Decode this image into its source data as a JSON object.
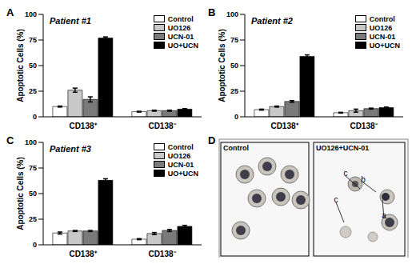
{
  "chart_data": [
    {
      "panel": "A",
      "type": "bar",
      "title": "Patient #1",
      "y_label": "Apoptotic Cells (%)",
      "categories": [
        "CD138⁺",
        "CD138⁻"
      ],
      "series": [
        {
          "name": "Control",
          "color": "#ffffff",
          "values": [
            10,
            5
          ],
          "errors": [
            0.5,
            0.4
          ]
        },
        {
          "name": "UO126",
          "color": "#c8c8c8",
          "values": [
            26,
            6
          ],
          "errors": [
            2,
            0.5
          ]
        },
        {
          "name": "UCN-01",
          "color": "#7a7a7a",
          "values": [
            17,
            6
          ],
          "errors": [
            2.5,
            0.5
          ]
        },
        {
          "name": "UO+UCN",
          "color": "#000000",
          "values": [
            77,
            7.5
          ],
          "errors": [
            1,
            0.5
          ]
        }
      ],
      "ylim": [
        0,
        100
      ],
      "yticks": [
        0,
        25,
        50,
        75,
        100
      ]
    },
    {
      "panel": "B",
      "type": "bar",
      "title": "Patient #2",
      "y_label": "Apoptotic Cells (%)",
      "categories": [
        "CD138⁺",
        "CD138⁻"
      ],
      "series": [
        {
          "name": "Control",
          "color": "#ffffff",
          "values": [
            7,
            4
          ],
          "errors": [
            0.5,
            0.4
          ]
        },
        {
          "name": "UO126",
          "color": "#c8c8c8",
          "values": [
            10,
            6
          ],
          "errors": [
            0.5,
            1.5
          ]
        },
        {
          "name": "UCN-01",
          "color": "#7a7a7a",
          "values": [
            15,
            8
          ],
          "errors": [
            0.8,
            0.5
          ]
        },
        {
          "name": "UO+UCN",
          "color": "#000000",
          "values": [
            59,
            9
          ],
          "errors": [
            1.5,
            0.5
          ]
        }
      ],
      "ylim": [
        0,
        100
      ],
      "yticks": [
        0,
        25,
        50,
        75,
        100
      ]
    },
    {
      "panel": "C",
      "type": "bar",
      "title": "Patient #3",
      "y_label": "Apoptotic Cells (%)",
      "categories": [
        "CD138⁺",
        "CD138⁻"
      ],
      "series": [
        {
          "name": "Control",
          "color": "#ffffff",
          "values": [
            11.5,
            5.5
          ],
          "errors": [
            1,
            0.5
          ]
        },
        {
          "name": "UO126",
          "color": "#c8c8c8",
          "values": [
            13.5,
            11
          ],
          "errors": [
            0.5,
            1
          ]
        },
        {
          "name": "UCN-01",
          "color": "#7a7a7a",
          "values": [
            13.5,
            14
          ],
          "errors": [
            0.5,
            1
          ]
        },
        {
          "name": "UO+UCN",
          "color": "#000000",
          "values": [
            63,
            18
          ],
          "errors": [
            1.5,
            1
          ]
        }
      ],
      "ylim": [
        0,
        100
      ],
      "yticks": [
        0,
        25,
        50,
        75,
        100
      ]
    }
  ],
  "image_panel": {
    "panel": "D",
    "images": [
      {
        "label": "Control"
      },
      {
        "label": "UO126+UCN-01",
        "markers": [
          "c",
          "b",
          "c",
          "a"
        ]
      }
    ]
  }
}
